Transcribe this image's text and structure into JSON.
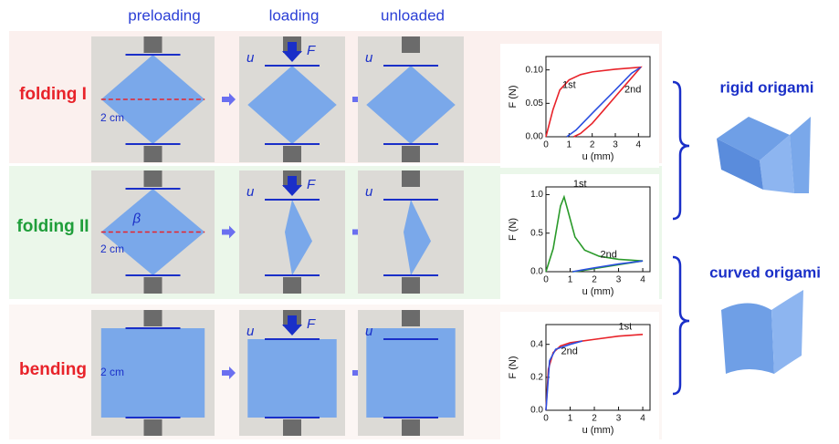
{
  "columns": [
    "preloading",
    "loading",
    "unloaded"
  ],
  "rows": [
    "folding I",
    "folding II",
    "bending"
  ],
  "side_labels": [
    "rigid origami",
    "curved origami"
  ],
  "symbols": {
    "u": "u",
    "F": "F",
    "beta": "β",
    "scale": "2 cm"
  },
  "chart_data": [
    {
      "type": "line",
      "xlabel": "u (mm)",
      "ylabel": "F (N)",
      "xlim": [
        0,
        4.5
      ],
      "xticks": [
        0,
        1,
        2,
        3,
        4
      ],
      "ylim": [
        0,
        0.12
      ],
      "yticks": [
        {
          "value": 0,
          "label": "0.00"
        },
        {
          "value": 0.05,
          "label": "0.05"
        },
        {
          "value": 0.1,
          "label": "0.10"
        }
      ],
      "series": [
        {
          "name": "1st",
          "color": "#e8232a",
          "x": [
            0,
            0.3,
            0.6,
            1,
            1.5,
            2,
            3,
            4.1,
            3.5,
            3,
            2.5,
            2,
            1.5,
            1.2
          ],
          "values": [
            0,
            0.04,
            0.07,
            0.085,
            0.093,
            0.097,
            0.101,
            0.104,
            0.08,
            0.06,
            0.04,
            0.02,
            0.005,
            0
          ]
        },
        {
          "name": "2nd",
          "color": "#2b4fe0",
          "x": [
            0.9,
            1.3,
            2,
            3,
            3.7,
            4.1
          ],
          "values": [
            0,
            0.01,
            0.035,
            0.07,
            0.095,
            0.104
          ]
        }
      ]
    },
    {
      "type": "line",
      "xlabel": "u (mm)",
      "ylabel": "F (N)",
      "xlim": [
        0,
        4.3
      ],
      "xticks": [
        0,
        1,
        2,
        3,
        4
      ],
      "ylim": [
        0,
        1.1
      ],
      "yticks": [
        {
          "value": 0,
          "label": "0.0"
        },
        {
          "value": 0.5,
          "label": "0.5"
        },
        {
          "value": 1,
          "label": "1.0"
        }
      ],
      "series": [
        {
          "name": "1st",
          "color": "#2a9a2a",
          "x": [
            0,
            0.3,
            0.6,
            0.75,
            0.9,
            1.2,
            1.6,
            2.2,
            3,
            4,
            3,
            2,
            1.4,
            1.1
          ],
          "values": [
            0,
            0.3,
            0.85,
            0.97,
            0.8,
            0.45,
            0.28,
            0.2,
            0.16,
            0.14,
            0.09,
            0.04,
            0.01,
            0
          ]
        },
        {
          "name": "2nd",
          "color": "#2b4fe0",
          "x": [
            1.1,
            2,
            3,
            4
          ],
          "values": [
            0,
            0.05,
            0.1,
            0.14
          ]
        }
      ]
    },
    {
      "type": "line",
      "xlabel": "u (mm)",
      "ylabel": "F (N)",
      "xlim": [
        0,
        4.3
      ],
      "xticks": [
        0,
        1,
        2,
        3,
        4
      ],
      "ylim": [
        0,
        0.52
      ],
      "yticks": [
        {
          "value": 0,
          "label": "0.0"
        },
        {
          "value": 0.2,
          "label": "0.2"
        },
        {
          "value": 0.4,
          "label": "0.4"
        }
      ],
      "series": [
        {
          "name": "1st",
          "color": "#e8232a",
          "x": [
            0,
            0.1,
            0.3,
            0.6,
            1,
            2,
            3,
            4
          ],
          "values": [
            0,
            0.25,
            0.35,
            0.39,
            0.41,
            0.43,
            0.45,
            0.46
          ]
        },
        {
          "name": "2nd",
          "color": "#2b4fe0",
          "x": [
            0,
            0.15,
            0.4,
            1,
            1.5
          ],
          "values": [
            0,
            0.3,
            0.37,
            0.4,
            0.42
          ]
        }
      ]
    }
  ]
}
